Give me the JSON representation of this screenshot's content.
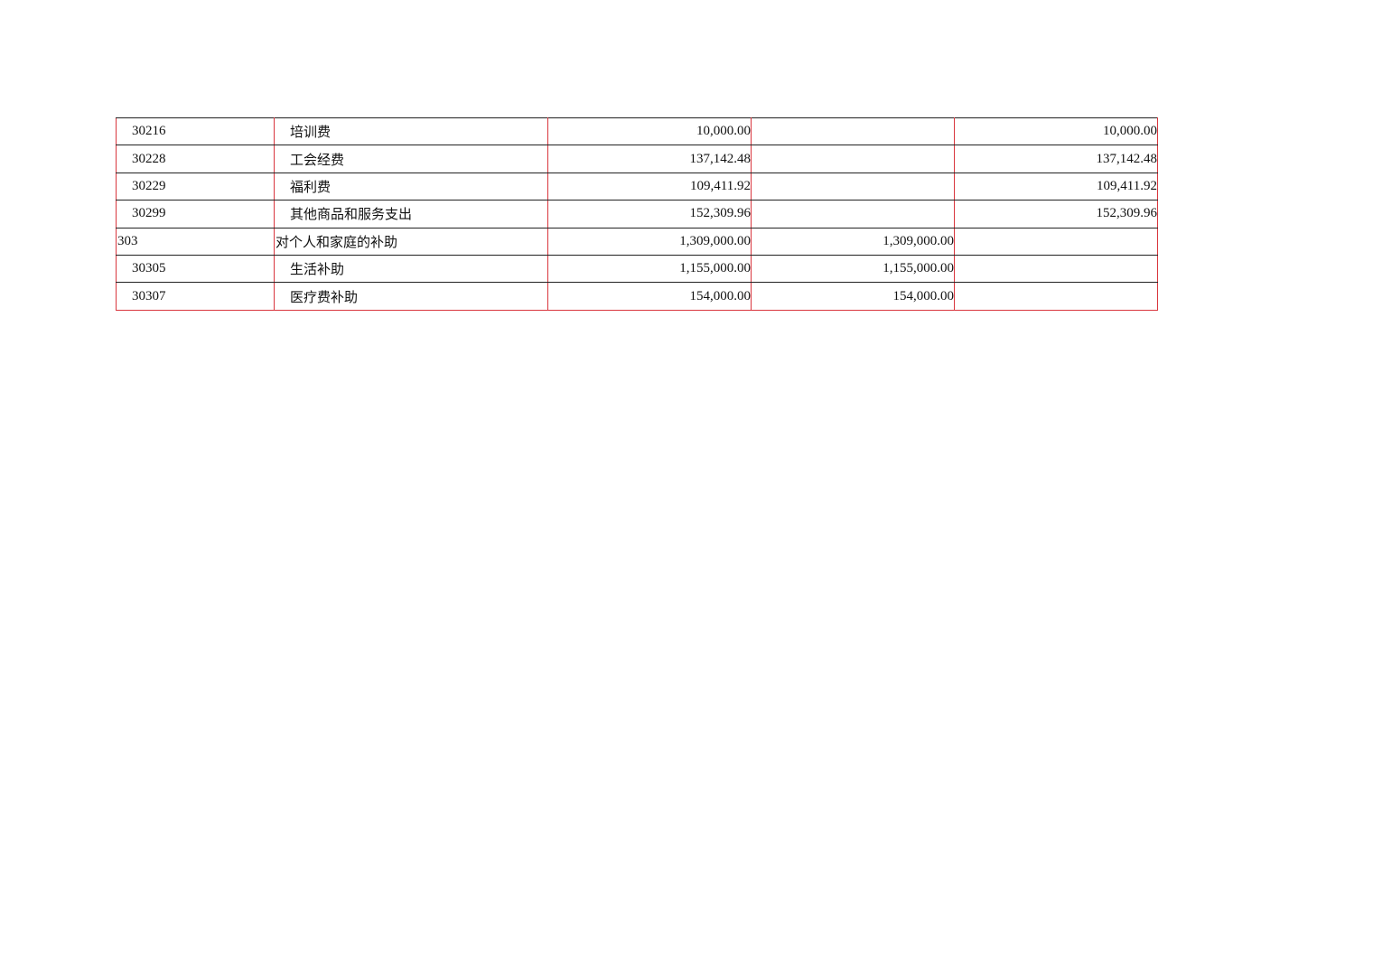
{
  "rows": [
    {
      "code": "30216",
      "name": "培训费",
      "total": "10,000.00",
      "basic": "",
      "project": "10,000.00",
      "level": 2
    },
    {
      "code": "30228",
      "name": "工会经费",
      "total": "137,142.48",
      "basic": "",
      "project": "137,142.48",
      "level": 2
    },
    {
      "code": "30229",
      "name": "福利费",
      "total": "109,411.92",
      "basic": "",
      "project": "109,411.92",
      "level": 2
    },
    {
      "code": "30299",
      "name": "其他商品和服务支出",
      "total": "152,309.96",
      "basic": "",
      "project": "152,309.96",
      "level": 2
    },
    {
      "code": "303",
      "name": "对个人和家庭的补助",
      "total": "1,309,000.00",
      "basic": "1,309,000.00",
      "project": "",
      "level": 1
    },
    {
      "code": "30305",
      "name": "生活补助",
      "total": "1,155,000.00",
      "basic": "1,155,000.00",
      "project": "",
      "level": 2
    },
    {
      "code": "30307",
      "name": "医疗费补助",
      "total": "154,000.00",
      "basic": "154,000.00",
      "project": "",
      "level": 2
    }
  ],
  "colors": {
    "vertical_border": "#d9363e",
    "horizontal_border": "#222222"
  }
}
